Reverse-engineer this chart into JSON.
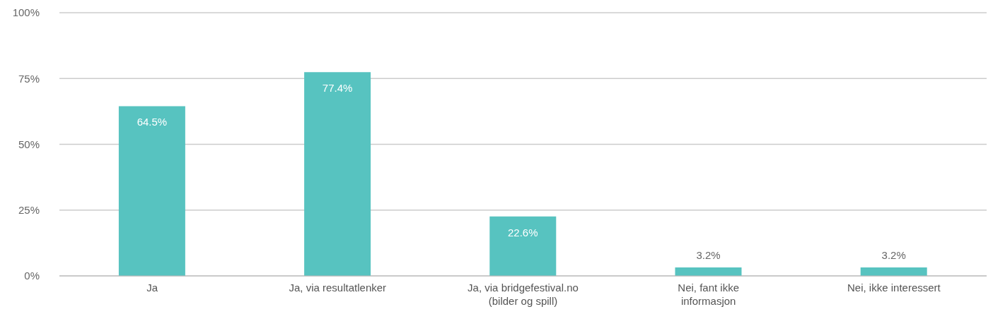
{
  "chart_data": {
    "type": "bar",
    "categories": [
      "Ja",
      "Ja, via resultatlenker",
      "Ja, via bridgefestival.no (bilder og spill)",
      "Nei, fant ikke informasjon",
      "Nei, ikke interessert"
    ],
    "values": [
      64.5,
      77.4,
      22.6,
      3.2,
      3.2
    ],
    "value_labels": [
      "64.5%",
      "77.4%",
      "22.6%",
      "3.2%",
      "3.2%"
    ],
    "color": "#57c3c0",
    "ylim": [
      0,
      100
    ],
    "yticks": [
      {
        "value": 0,
        "label": "0%"
      },
      {
        "value": 25,
        "label": "25%"
      },
      {
        "value": 50,
        "label": "50%"
      },
      {
        "value": 75,
        "label": "75%"
      },
      {
        "value": 100,
        "label": "100%"
      }
    ],
    "grid": "y"
  }
}
